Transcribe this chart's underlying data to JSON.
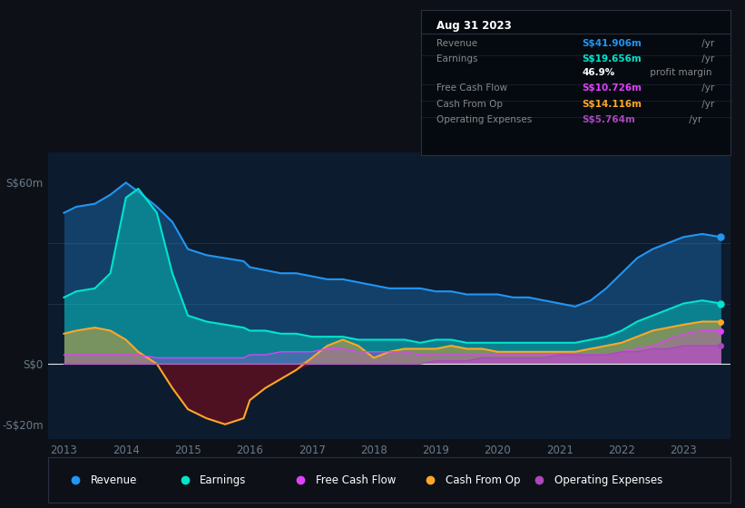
{
  "background_color": "#0d1117",
  "plot_bg_color": "#0d1b2e",
  "colors": {
    "revenue": "#2196f3",
    "earnings": "#00e5cc",
    "free_cash_flow": "#e040fb",
    "cash_from_op": "#ffa726",
    "operating_expenses": "#ab47bc"
  },
  "years": [
    2013.0,
    2013.2,
    2013.5,
    2013.75,
    2014.0,
    2014.2,
    2014.5,
    2014.75,
    2015.0,
    2015.3,
    2015.6,
    2015.9,
    2016.0,
    2016.25,
    2016.5,
    2016.75,
    2017.0,
    2017.25,
    2017.5,
    2017.75,
    2018.0,
    2018.25,
    2018.5,
    2018.75,
    2019.0,
    2019.25,
    2019.5,
    2019.75,
    2020.0,
    2020.25,
    2020.5,
    2020.75,
    2021.0,
    2021.25,
    2021.5,
    2021.75,
    2022.0,
    2022.25,
    2022.5,
    2022.75,
    2023.0,
    2023.3,
    2023.6
  ],
  "revenue": [
    50,
    52,
    53,
    56,
    60,
    57,
    52,
    47,
    38,
    36,
    35,
    34,
    32,
    31,
    30,
    30,
    29,
    28,
    28,
    27,
    26,
    25,
    25,
    25,
    24,
    24,
    23,
    23,
    23,
    22,
    22,
    21,
    20,
    19,
    21,
    25,
    30,
    35,
    38,
    40,
    42,
    43,
    42
  ],
  "earnings": [
    22,
    24,
    25,
    30,
    55,
    58,
    50,
    30,
    16,
    14,
    13,
    12,
    11,
    11,
    10,
    10,
    9,
    9,
    9,
    8,
    8,
    8,
    8,
    7,
    8,
    8,
    7,
    7,
    7,
    7,
    7,
    7,
    7,
    7,
    8,
    9,
    11,
    14,
    16,
    18,
    20,
    21,
    20
  ],
  "free_cash_flow": [
    3,
    3,
    3,
    3,
    3,
    3,
    2,
    2,
    2,
    2,
    2,
    2,
    3,
    3,
    4,
    4,
    4,
    5,
    5,
    4,
    4,
    4,
    4,
    3,
    3,
    3,
    3,
    3,
    3,
    3,
    3,
    3,
    3,
    3,
    3,
    3,
    4,
    5,
    6,
    8,
    10,
    11,
    11
  ],
  "cash_from_op": [
    10,
    11,
    12,
    11,
    8,
    4,
    0,
    -8,
    -15,
    -18,
    -20,
    -18,
    -12,
    -8,
    -5,
    -2,
    2,
    6,
    8,
    6,
    2,
    4,
    5,
    5,
    5,
    6,
    5,
    5,
    4,
    4,
    4,
    4,
    4,
    4,
    5,
    6,
    7,
    9,
    11,
    12,
    13,
    14,
    14
  ],
  "operating_expenses": [
    0,
    0,
    0,
    0,
    0,
    0,
    0,
    0,
    0,
    0,
    0,
    0,
    0,
    0,
    0,
    0,
    0,
    0,
    0,
    0,
    0,
    0,
    0,
    0,
    1,
    1,
    1,
    2,
    2,
    2,
    2,
    2,
    3,
    3,
    3,
    3,
    4,
    4,
    5,
    5,
    6,
    6,
    6
  ],
  "legend_items": [
    {
      "label": "Revenue",
      "color": "#2196f3"
    },
    {
      "label": "Earnings",
      "color": "#00e5cc"
    },
    {
      "label": "Free Cash Flow",
      "color": "#e040fb"
    },
    {
      "label": "Cash From Op",
      "color": "#ffa726"
    },
    {
      "label": "Operating Expenses",
      "color": "#ab47bc"
    }
  ],
  "tooltip": {
    "header": "Aug 31 2023",
    "rows": [
      {
        "label": "Revenue",
        "value": "S$41.906m",
        "unit": " /yr",
        "label_color": "#888888",
        "value_color": "#2196f3",
        "unit_color": "#888888"
      },
      {
        "label": "Earnings",
        "value": "S$19.656m",
        "unit": " /yr",
        "label_color": "#888888",
        "value_color": "#00e5cc",
        "unit_color": "#888888"
      },
      {
        "label": "",
        "value": "46.9%",
        "unit": " profit margin",
        "label_color": "#888888",
        "value_color": "#ffffff",
        "unit_color": "#888888"
      },
      {
        "label": "Free Cash Flow",
        "value": "S$10.726m",
        "unit": " /yr",
        "label_color": "#888888",
        "value_color": "#e040fb",
        "unit_color": "#888888"
      },
      {
        "label": "Cash From Op",
        "value": "S$14.116m",
        "unit": " /yr",
        "label_color": "#888888",
        "value_color": "#ffa726",
        "unit_color": "#888888"
      },
      {
        "label": "Operating Expenses",
        "value": "S$5.764m",
        "unit": " /yr",
        "label_color": "#888888",
        "value_color": "#ab47bc",
        "unit_color": "#888888"
      }
    ]
  }
}
